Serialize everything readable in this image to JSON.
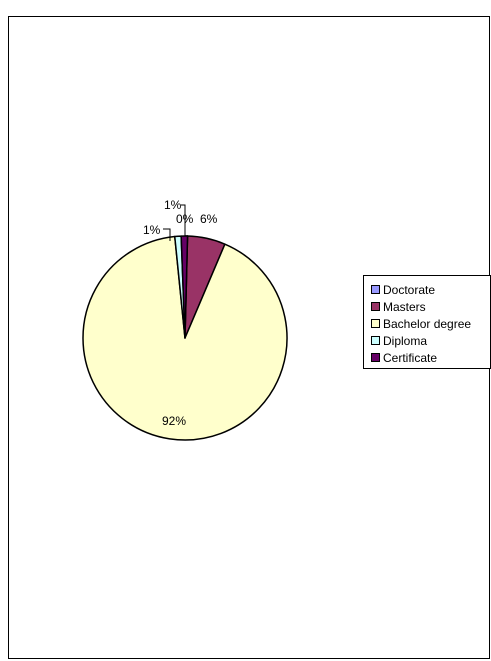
{
  "chart_data": {
    "type": "pie",
    "title": "",
    "categories": [
      "Doctorate",
      "Masters",
      "Bachelor degree",
      "Diploma",
      "Certificate"
    ],
    "values": [
      0,
      6,
      92,
      1,
      1
    ],
    "labels": [
      "0%",
      "6%",
      "92%",
      "1%",
      "1%"
    ],
    "colors": [
      "#9999ff",
      "#993366",
      "#ffffcc",
      "#ccffff",
      "#660066"
    ],
    "legend_position": "right",
    "start_angle": "12 o'clock, clockwise"
  }
}
